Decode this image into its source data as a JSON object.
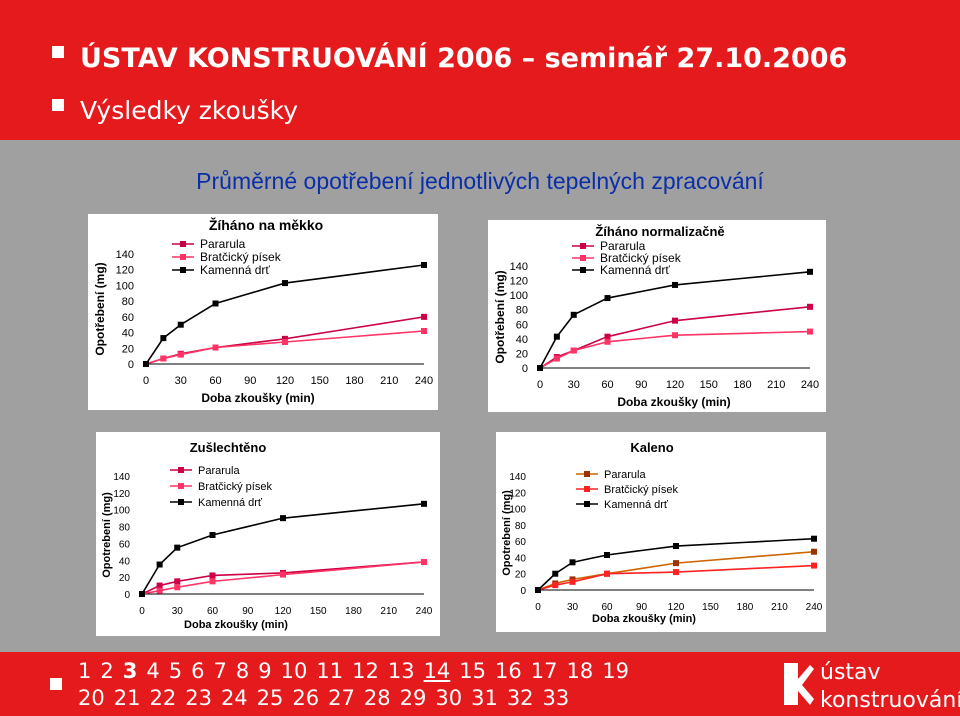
{
  "header": {
    "line1": "ÚSTAV KONSTRUOVÁNÍ 2006 – seminář 27.10.2006",
    "line2": "Výsledky zkoušky"
  },
  "main_title": "Průměrné opotřebení jednotlivých tepelných zpracování",
  "colors": {
    "header": "#e41a1c",
    "title": "#0a2fa8",
    "series_a": "#cc0044",
    "series_b": "#ff3366",
    "series_c": "#000000",
    "k_a": "#cc6600",
    "k_b": "#ff2222",
    "k_c": "#000000"
  },
  "chart_data": [
    {
      "type": "line",
      "title": "Žíháno na měkko",
      "xlabel": "Doba zkoušky (min)",
      "ylabel": "Opotřebení (mg)",
      "xlim": [
        0,
        240
      ],
      "ylim": [
        0,
        140
      ],
      "xticks": [
        0,
        30,
        60,
        90,
        120,
        150,
        180,
        210,
        240
      ],
      "yticks": [
        0,
        20,
        40,
        60,
        80,
        100,
        120,
        140
      ],
      "series": [
        {
          "name": "Pararula",
          "x": [
            0,
            15,
            30,
            60,
            120,
            240
          ],
          "y": [
            0,
            7,
            13,
            21,
            32,
            60
          ]
        },
        {
          "name": "Bratčický písek",
          "x": [
            0,
            15,
            30,
            60,
            120,
            240
          ],
          "y": [
            0,
            7,
            12,
            21,
            28,
            42
          ]
        },
        {
          "name": "Kamenná drť",
          "x": [
            0,
            15,
            30,
            60,
            120,
            240
          ],
          "y": [
            0,
            33,
            50,
            77,
            103,
            126
          ]
        }
      ]
    },
    {
      "type": "line",
      "title": "Žíháno normalizačně",
      "xlabel": "Doba zkoušky (min)",
      "ylabel": "Opotřebení (mg)",
      "xlim": [
        0,
        240
      ],
      "ylim": [
        0,
        140
      ],
      "xticks": [
        0,
        30,
        60,
        90,
        120,
        150,
        180,
        210,
        240
      ],
      "yticks": [
        0,
        20,
        40,
        60,
        80,
        100,
        120,
        140
      ],
      "series": [
        {
          "name": "Pararula",
          "x": [
            0,
            15,
            30,
            60,
            120,
            240
          ],
          "y": [
            0,
            15,
            24,
            43,
            65,
            84
          ]
        },
        {
          "name": "Bratčický písek",
          "x": [
            0,
            15,
            30,
            60,
            120,
            240
          ],
          "y": [
            0,
            13,
            24,
            36,
            45,
            50
          ]
        },
        {
          "name": "Kamenná drť",
          "x": [
            0,
            15,
            30,
            60,
            120,
            240
          ],
          "y": [
            0,
            43,
            73,
            96,
            114,
            132
          ]
        }
      ]
    },
    {
      "type": "line",
      "title": "Zušlechtěno",
      "xlabel": "Doba zkoušky (min)",
      "ylabel": "Opotrebení (mg)",
      "xlim": [
        0,
        240
      ],
      "ylim": [
        0,
        140
      ],
      "xticks": [
        0,
        30,
        60,
        90,
        120,
        150,
        180,
        210,
        240
      ],
      "yticks": [
        0,
        20,
        40,
        60,
        80,
        100,
        120,
        140
      ],
      "series": [
        {
          "name": "Pararula",
          "x": [
            0,
            15,
            30,
            60,
            120,
            240
          ],
          "y": [
            0,
            10,
            15,
            22,
            25,
            38
          ]
        },
        {
          "name": "Bratčický písek",
          "x": [
            0,
            15,
            30,
            60,
            120,
            240
          ],
          "y": [
            0,
            4,
            8,
            15,
            23,
            38
          ]
        },
        {
          "name": "Kamenná drť",
          "x": [
            0,
            15,
            30,
            60,
            120,
            240
          ],
          "y": [
            0,
            35,
            55,
            70,
            90,
            107
          ]
        }
      ]
    },
    {
      "type": "line",
      "title": "Kaleno",
      "xlabel": "Doba zkoušky (min)",
      "ylabel": "Opotrebení (mg)",
      "xlim": [
        0,
        240
      ],
      "ylim": [
        0,
        140
      ],
      "xticks": [
        0,
        30,
        60,
        90,
        120,
        150,
        180,
        210,
        240
      ],
      "yticks": [
        0,
        20,
        40,
        60,
        80,
        100,
        120,
        140
      ],
      "series": [
        {
          "name": "Pararula",
          "x": [
            0,
            15,
            30,
            60,
            120,
            240
          ],
          "y": [
            0,
            8,
            13,
            20,
            33,
            47
          ]
        },
        {
          "name": "Bratčický písek",
          "x": [
            0,
            15,
            30,
            60,
            120,
            240
          ],
          "y": [
            0,
            6,
            10,
            20,
            22,
            30
          ]
        },
        {
          "name": "Kamenná drť",
          "x": [
            0,
            15,
            30,
            60,
            120,
            240
          ],
          "y": [
            0,
            20,
            34,
            43,
            54,
            63
          ]
        }
      ]
    }
  ],
  "footer": {
    "pages_row1": [
      "1",
      "2",
      "3",
      "4",
      "5",
      "6",
      "7",
      "8",
      "9",
      "10",
      "11",
      "12",
      "13",
      "14",
      "15",
      "16",
      "17",
      "18",
      "19"
    ],
    "pages_row2": [
      "20",
      "21",
      "22",
      "23",
      "24",
      "25",
      "26",
      "27",
      "28",
      "29",
      "30",
      "31",
      "32",
      "33"
    ],
    "current": "3",
    "link": "14",
    "logo_line1": "ústav",
    "logo_line2": "konstruování"
  }
}
